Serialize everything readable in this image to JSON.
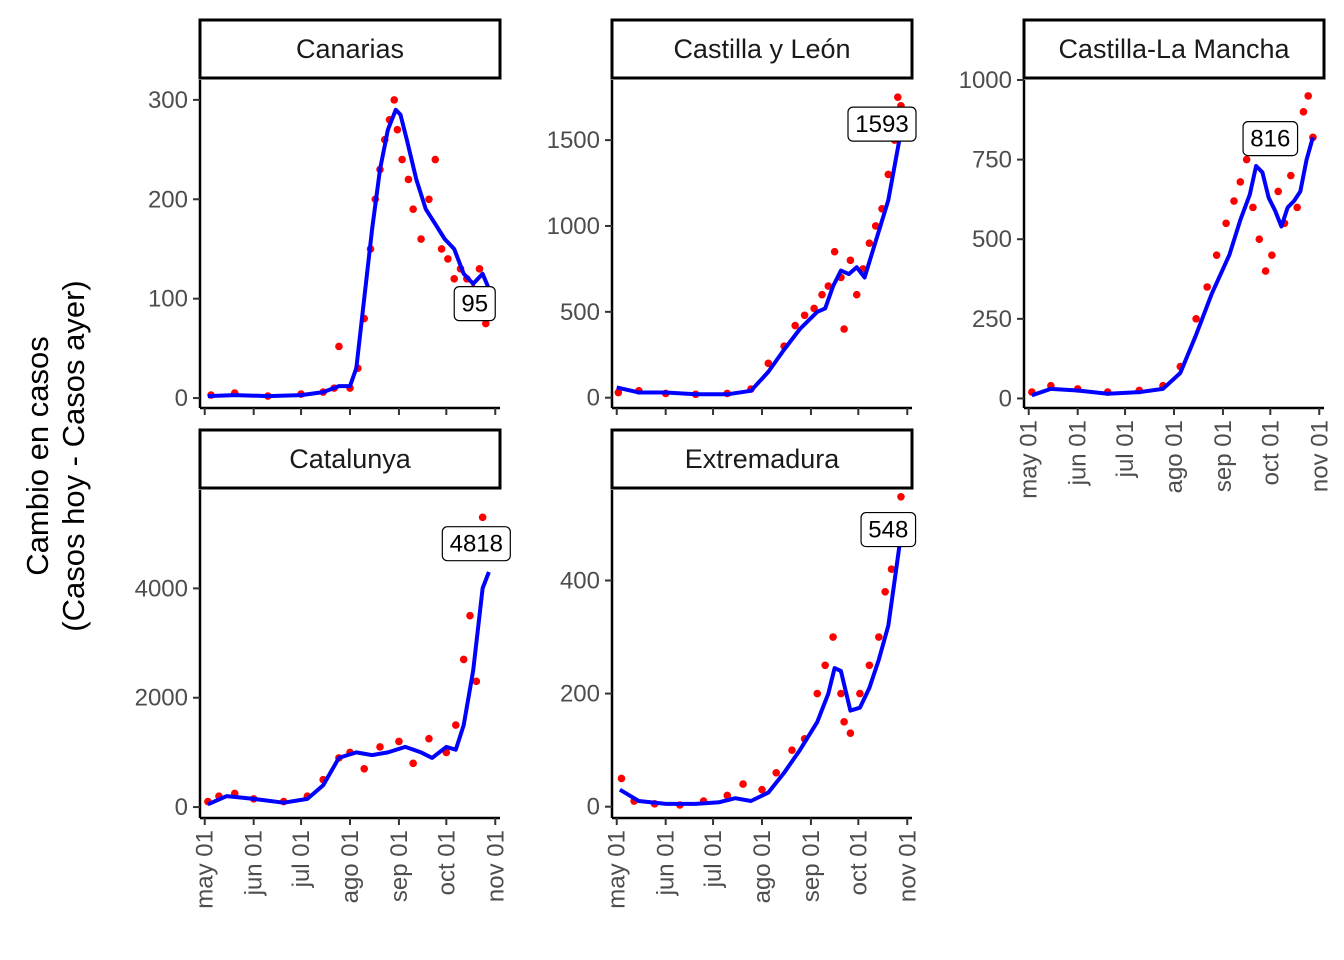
{
  "y_axis_label": {
    "line1": "Cambio en casos",
    "line2": "(Casos hoy - Casos ayer)"
  },
  "colors": {
    "points": "#ff0000",
    "trend": "#0000ff"
  },
  "chart_data": [
    {
      "type": "scatter",
      "facet": "Canarias",
      "x_type": "date",
      "xlim": [
        "2020-04-28",
        "2020-11-04"
      ],
      "x_ticks": [
        "may 01",
        "jun 01",
        "jul 01",
        "ago 01",
        "sep 01",
        "oct 01",
        "nov 01"
      ],
      "x_tick_dates": [
        "2020-05-01",
        "2020-06-01",
        "2020-07-01",
        "2020-08-01",
        "2020-09-01",
        "2020-10-01",
        "2020-11-01"
      ],
      "x_ticks_visible": false,
      "ylim": [
        -10,
        320
      ],
      "y_ticks": [
        0,
        100,
        200,
        300
      ],
      "label": {
        "text": "95",
        "date": "2020-10-19",
        "y": 95
      },
      "series": [
        {
          "style": "points",
          "x": [
            "2020-05-05",
            "2020-05-20",
            "2020-06-10",
            "2020-07-01",
            "2020-07-15",
            "2020-07-22",
            "2020-07-25",
            "2020-08-01",
            "2020-08-06",
            "2020-08-10",
            "2020-08-14",
            "2020-08-17",
            "2020-08-20",
            "2020-08-23",
            "2020-08-26",
            "2020-08-29",
            "2020-08-31",
            "2020-09-03",
            "2020-09-07",
            "2020-09-10",
            "2020-09-15",
            "2020-09-20",
            "2020-09-24",
            "2020-09-28",
            "2020-10-02",
            "2020-10-06",
            "2020-10-10",
            "2020-10-14",
            "2020-10-18",
            "2020-10-22",
            "2020-10-26"
          ],
          "y": [
            3,
            5,
            2,
            4,
            6,
            10,
            52,
            10,
            30,
            80,
            150,
            200,
            230,
            260,
            280,
            300,
            270,
            240,
            220,
            190,
            160,
            200,
            240,
            150,
            140,
            120,
            130,
            120,
            110,
            130,
            75
          ]
        },
        {
          "style": "line",
          "x": [
            "2020-05-03",
            "2020-05-20",
            "2020-06-10",
            "2020-07-01",
            "2020-07-15",
            "2020-07-25",
            "2020-08-01",
            "2020-08-05",
            "2020-08-10",
            "2020-08-15",
            "2020-08-20",
            "2020-08-25",
            "2020-08-30",
            "2020-09-02",
            "2020-09-06",
            "2020-09-12",
            "2020-09-18",
            "2020-09-24",
            "2020-09-30",
            "2020-10-06",
            "2020-10-12",
            "2020-10-18",
            "2020-10-24",
            "2020-10-28"
          ],
          "y": [
            2,
            3,
            2,
            3,
            6,
            12,
            12,
            30,
            100,
            170,
            230,
            270,
            290,
            285,
            260,
            220,
            190,
            175,
            160,
            150,
            125,
            115,
            125,
            110
          ]
        }
      ]
    },
    {
      "type": "scatter",
      "facet": "Castilla y León",
      "x_type": "date",
      "xlim": [
        "2020-04-28",
        "2020-11-04"
      ],
      "x_ticks": [
        "may 01",
        "jun 01",
        "jul 01",
        "ago 01",
        "sep 01",
        "oct 01",
        "nov 01"
      ],
      "x_tick_dates": [
        "2020-05-01",
        "2020-06-01",
        "2020-07-01",
        "2020-08-01",
        "2020-09-01",
        "2020-10-01",
        "2020-11-01"
      ],
      "x_ticks_visible": false,
      "ylim": [
        -60,
        1850
      ],
      "y_ticks": [
        0,
        500,
        1000,
        1500
      ],
      "label": {
        "text": "1593",
        "date": "2020-10-16",
        "y": 1593
      },
      "series": [
        {
          "style": "points",
          "x": [
            "2020-05-02",
            "2020-05-15",
            "2020-06-01",
            "2020-06-20",
            "2020-07-10",
            "2020-07-25",
            "2020-08-05",
            "2020-08-15",
            "2020-08-22",
            "2020-08-28",
            "2020-09-03",
            "2020-09-08",
            "2020-09-12",
            "2020-09-16",
            "2020-09-20",
            "2020-09-22",
            "2020-09-26",
            "2020-09-30",
            "2020-10-04",
            "2020-10-08",
            "2020-10-12",
            "2020-10-16",
            "2020-10-20",
            "2020-10-24",
            "2020-10-26",
            "2020-10-28"
          ],
          "y": [
            30,
            40,
            25,
            20,
            25,
            50,
            200,
            300,
            420,
            480,
            520,
            600,
            650,
            850,
            700,
            400,
            800,
            600,
            750,
            900,
            1000,
            1100,
            1300,
            1500,
            1750,
            1700
          ]
        },
        {
          "style": "line",
          "x": [
            "2020-05-01",
            "2020-05-15",
            "2020-06-01",
            "2020-06-20",
            "2020-07-10",
            "2020-07-25",
            "2020-08-05",
            "2020-08-15",
            "2020-08-25",
            "2020-09-05",
            "2020-09-10",
            "2020-09-15",
            "2020-09-20",
            "2020-09-25",
            "2020-09-30",
            "2020-10-05",
            "2020-10-10",
            "2020-10-15",
            "2020-10-20",
            "2020-10-24",
            "2020-10-28"
          ],
          "y": [
            60,
            30,
            30,
            20,
            20,
            40,
            150,
            280,
            400,
            500,
            520,
            650,
            740,
            720,
            760,
            700,
            850,
            1000,
            1150,
            1350,
            1550
          ]
        }
      ]
    },
    {
      "type": "scatter",
      "facet": "Castilla-La Mancha",
      "x_type": "date",
      "xlim": [
        "2020-04-28",
        "2020-11-04"
      ],
      "x_ticks": [
        "may 01",
        "jun 01",
        "jul 01",
        "ago 01",
        "sep 01",
        "oct 01",
        "nov 01"
      ],
      "x_tick_dates": [
        "2020-05-01",
        "2020-06-01",
        "2020-07-01",
        "2020-08-01",
        "2020-09-01",
        "2020-10-01",
        "2020-11-01"
      ],
      "x_ticks_visible": true,
      "ylim": [
        -30,
        1000
      ],
      "y_ticks": [
        0,
        250,
        500,
        750,
        1000
      ],
      "label": {
        "text": "816",
        "date": "2020-10-01",
        "y": 816
      },
      "series": [
        {
          "style": "points",
          "x": [
            "2020-05-03",
            "2020-05-15",
            "2020-06-01",
            "2020-06-20",
            "2020-07-10",
            "2020-07-25",
            "2020-08-05",
            "2020-08-15",
            "2020-08-22",
            "2020-08-28",
            "2020-09-03",
            "2020-09-08",
            "2020-09-12",
            "2020-09-16",
            "2020-09-20",
            "2020-09-24",
            "2020-09-28",
            "2020-10-02",
            "2020-10-06",
            "2020-10-10",
            "2020-10-14",
            "2020-10-18",
            "2020-10-22",
            "2020-10-25",
            "2020-10-28"
          ],
          "y": [
            20,
            40,
            30,
            20,
            25,
            40,
            100,
            250,
            350,
            450,
            550,
            620,
            680,
            750,
            600,
            500,
            400,
            450,
            650,
            550,
            700,
            600,
            900,
            950,
            820
          ]
        },
        {
          "style": "line",
          "x": [
            "2020-05-03",
            "2020-05-15",
            "2020-06-01",
            "2020-06-20",
            "2020-07-10",
            "2020-07-25",
            "2020-08-05",
            "2020-08-15",
            "2020-08-25",
            "2020-09-05",
            "2020-09-12",
            "2020-09-18",
            "2020-09-22",
            "2020-09-26",
            "2020-09-30",
            "2020-10-04",
            "2020-10-08",
            "2020-10-12",
            "2020-10-16",
            "2020-10-20",
            "2020-10-24",
            "2020-10-28"
          ],
          "y": [
            10,
            30,
            25,
            15,
            20,
            30,
            80,
            200,
            330,
            450,
            560,
            640,
            730,
            710,
            630,
            590,
            540,
            600,
            620,
            650,
            750,
            820
          ]
        }
      ]
    },
    {
      "type": "scatter",
      "facet": "Catalunya",
      "x_type": "date",
      "xlim": [
        "2020-04-28",
        "2020-11-04"
      ],
      "x_ticks": [
        "may 01",
        "jun 01",
        "jul 01",
        "ago 01",
        "sep 01",
        "oct 01",
        "nov 01"
      ],
      "x_tick_dates": [
        "2020-05-01",
        "2020-06-01",
        "2020-07-01",
        "2020-08-01",
        "2020-09-01",
        "2020-10-01",
        "2020-11-01"
      ],
      "x_ticks_visible": true,
      "ylim": [
        -200,
        5800
      ],
      "y_ticks": [
        0,
        2000,
        4000
      ],
      "label": {
        "text": "4818",
        "date": "2020-10-20",
        "y": 4818
      },
      "series": [
        {
          "style": "points",
          "x": [
            "2020-05-03",
            "2020-05-10",
            "2020-05-20",
            "2020-06-01",
            "2020-06-20",
            "2020-07-05",
            "2020-07-15",
            "2020-07-25",
            "2020-08-01",
            "2020-08-10",
            "2020-08-20",
            "2020-09-01",
            "2020-09-10",
            "2020-09-20",
            "2020-10-01",
            "2020-10-07",
            "2020-10-12",
            "2020-10-16",
            "2020-10-20",
            "2020-10-24",
            "2020-10-26",
            "2020-10-28"
          ],
          "y": [
            100,
            200,
            250,
            150,
            100,
            200,
            500,
            900,
            1000,
            700,
            1100,
            1200,
            800,
            1250,
            1000,
            1500,
            2700,
            3500,
            2300,
            5300,
            5000,
            4800
          ]
        },
        {
          "style": "line",
          "x": [
            "2020-05-03",
            "2020-05-15",
            "2020-06-01",
            "2020-06-20",
            "2020-07-05",
            "2020-07-15",
            "2020-07-25",
            "2020-08-05",
            "2020-08-15",
            "2020-08-25",
            "2020-09-05",
            "2020-09-15",
            "2020-09-22",
            "2020-10-01",
            "2020-10-07",
            "2020-10-12",
            "2020-10-18",
            "2020-10-24",
            "2020-10-28"
          ],
          "y": [
            50,
            200,
            150,
            80,
            150,
            400,
            900,
            1000,
            950,
            1000,
            1100,
            1000,
            900,
            1100,
            1050,
            1500,
            2500,
            4000,
            4300
          ]
        }
      ]
    },
    {
      "type": "scatter",
      "facet": "Extremadura",
      "x_type": "date",
      "xlim": [
        "2020-04-28",
        "2020-11-04"
      ],
      "x_ticks": [
        "may 01",
        "jun 01",
        "jul 01",
        "ago 01",
        "sep 01",
        "oct 01",
        "nov 01"
      ],
      "x_tick_dates": [
        "2020-05-01",
        "2020-06-01",
        "2020-07-01",
        "2020-08-01",
        "2020-09-01",
        "2020-10-01",
        "2020-11-01"
      ],
      "x_ticks_visible": true,
      "ylim": [
        -20,
        560
      ],
      "y_ticks": [
        0,
        200,
        400
      ],
      "label": {
        "text": "548",
        "date": "2020-10-20",
        "y": 490
      },
      "series": [
        {
          "style": "points",
          "x": [
            "2020-05-04",
            "2020-05-12",
            "2020-05-25",
            "2020-06-10",
            "2020-06-25",
            "2020-07-10",
            "2020-07-20",
            "2020-08-01",
            "2020-08-10",
            "2020-08-20",
            "2020-08-28",
            "2020-09-05",
            "2020-09-10",
            "2020-09-15",
            "2020-09-20",
            "2020-09-22",
            "2020-09-26",
            "2020-10-02",
            "2020-10-08",
            "2020-10-14",
            "2020-10-18",
            "2020-10-22",
            "2020-10-26",
            "2020-10-28"
          ],
          "y": [
            50,
            10,
            5,
            3,
            10,
            20,
            40,
            30,
            60,
            100,
            120,
            200,
            250,
            300,
            200,
            150,
            130,
            200,
            250,
            300,
            380,
            420,
            500,
            548
          ]
        },
        {
          "style": "line",
          "x": [
            "2020-05-03",
            "2020-05-15",
            "2020-06-01",
            "2020-06-20",
            "2020-07-05",
            "2020-07-15",
            "2020-07-25",
            "2020-08-05",
            "2020-08-15",
            "2020-08-25",
            "2020-09-05",
            "2020-09-12",
            "2020-09-16",
            "2020-09-20",
            "2020-09-26",
            "2020-10-02",
            "2020-10-08",
            "2020-10-14",
            "2020-10-20",
            "2020-10-25",
            "2020-10-28"
          ],
          "y": [
            30,
            10,
            5,
            5,
            8,
            15,
            10,
            25,
            60,
            100,
            150,
            200,
            245,
            240,
            170,
            175,
            210,
            260,
            320,
            420,
            480
          ]
        }
      ]
    }
  ]
}
